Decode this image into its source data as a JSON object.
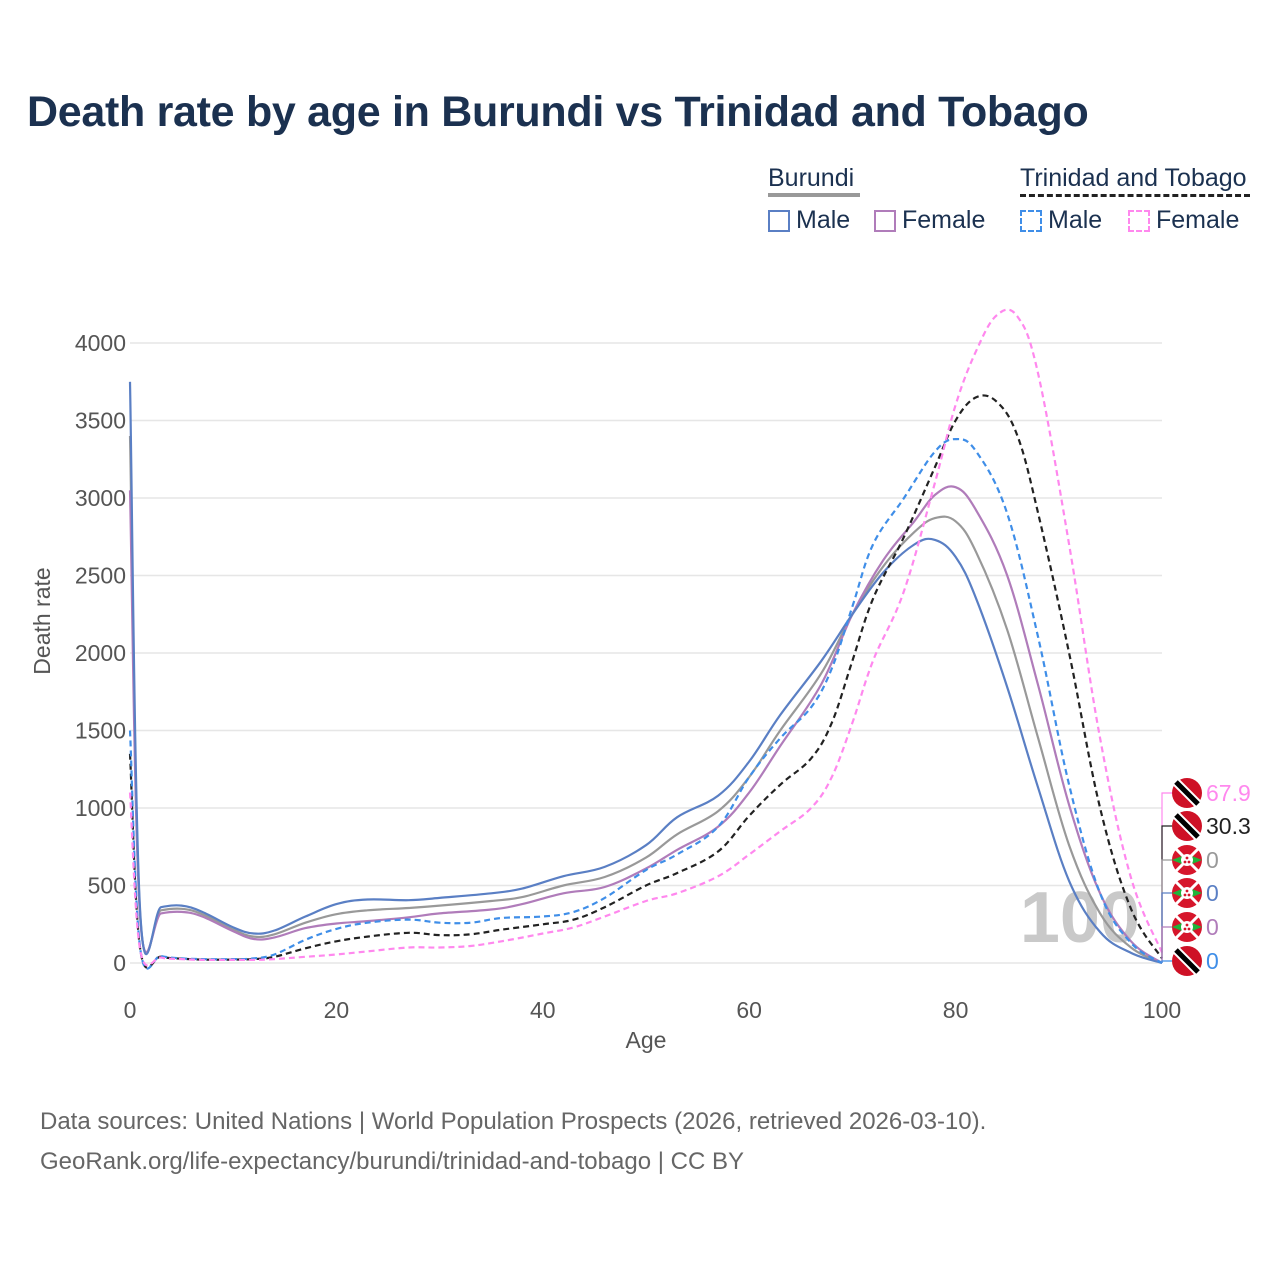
{
  "title": "Death rate by age in Burundi vs Trinidad and Tobago",
  "legend": {
    "groups": [
      {
        "name": "Burundi",
        "items": [
          "Male",
          "Female"
        ]
      },
      {
        "name": "Trinidad and Tobago",
        "items": [
          "Male",
          "Female"
        ]
      }
    ]
  },
  "watermark": "100",
  "footer": {
    "line1": "Data sources: United Nations | World Population Prospects (2026, retrieved 2026-03-10).",
    "line2": "GeoRank.org/life-expectancy/burundi/trinidad-and-tobago | CC BY"
  },
  "colors": {
    "burundi_male": "#5a7fc4",
    "burundi_female": "#b07cba",
    "burundi_total": "#999999",
    "tt_male": "#3f8ee8",
    "tt_female": "#ff88ee",
    "tt_total": "#222222",
    "title": "#1b3150"
  },
  "chart_data": {
    "type": "line",
    "title": "Death rate by age in Burundi vs Trinidad and Tobago",
    "xlabel": "Age",
    "ylabel": "Death rate",
    "xlim": [
      0,
      100
    ],
    "ylim": [
      0,
      4200
    ],
    "xticks": [
      0,
      20,
      40,
      60,
      80,
      100
    ],
    "yticks": [
      0,
      500,
      1000,
      1500,
      2000,
      2500,
      3000,
      3500,
      4000
    ],
    "grid": true,
    "series": [
      {
        "name": "Burundi Male",
        "country": "Burundi",
        "sex": "Male",
        "style": "solid",
        "color": "#5a7fc4",
        "x": [
          0,
          1,
          3,
          5,
          7,
          10,
          12,
          14,
          17,
          20,
          23,
          27,
          30,
          35,
          38,
          42,
          46,
          50,
          53,
          57,
          60,
          63,
          67,
          70,
          73,
          76,
          78,
          80,
          82,
          85,
          88,
          91,
          94,
          97,
          100
        ],
        "y": [
          3750,
          320,
          360,
          370,
          330,
          230,
          190,
          210,
          300,
          380,
          410,
          405,
          420,
          450,
          480,
          560,
          620,
          760,
          940,
          1080,
          1300,
          1600,
          1950,
          2250,
          2520,
          2700,
          2730,
          2620,
          2350,
          1780,
          1130,
          530,
          200,
          65,
          0
        ],
        "end_label": "0"
      },
      {
        "name": "Burundi Female",
        "country": "Burundi",
        "sex": "Female",
        "style": "solid",
        "color": "#b07cba",
        "x": [
          0,
          1,
          3,
          5,
          7,
          10,
          12,
          14,
          17,
          20,
          23,
          27,
          30,
          35,
          38,
          42,
          46,
          50,
          53,
          57,
          60,
          63,
          67,
          70,
          73,
          76,
          78,
          80,
          82,
          85,
          88,
          91,
          94,
          97,
          100
        ],
        "y": [
          3050,
          280,
          320,
          330,
          300,
          205,
          155,
          165,
          225,
          255,
          270,
          295,
          320,
          345,
          380,
          450,
          490,
          610,
          730,
          880,
          1100,
          1400,
          1800,
          2250,
          2600,
          2850,
          3020,
          3070,
          2920,
          2500,
          1790,
          1020,
          450,
          140,
          0
        ],
        "end_label": "0"
      },
      {
        "name": "Burundi Total",
        "country": "Burundi",
        "sex": "Total",
        "style": "solid",
        "color": "#999999",
        "x": [
          0,
          1,
          3,
          5,
          7,
          10,
          12,
          14,
          17,
          20,
          23,
          27,
          30,
          35,
          38,
          42,
          46,
          50,
          53,
          57,
          60,
          63,
          67,
          70,
          73,
          76,
          78,
          80,
          82,
          85,
          88,
          91,
          94,
          97,
          100
        ],
        "y": [
          3400,
          300,
          340,
          350,
          315,
          215,
          170,
          185,
          260,
          315,
          340,
          355,
          370,
          400,
          425,
          500,
          555,
          680,
          830,
          980,
          1200,
          1500,
          1870,
          2250,
          2560,
          2780,
          2870,
          2850,
          2650,
          2150,
          1450,
          760,
          320,
          100,
          0
        ],
        "end_label": "0"
      },
      {
        "name": "Trinidad and Tobago Male",
        "country": "Trinidad and Tobago",
        "sex": "Male",
        "style": "dashed",
        "color": "#3f8ee8",
        "x": [
          0,
          1,
          3,
          5,
          7,
          10,
          12,
          14,
          17,
          20,
          23,
          27,
          30,
          33,
          36,
          40,
          43,
          46,
          50,
          53,
          57,
          60,
          63,
          66,
          68,
          70,
          72,
          75,
          78,
          80,
          82,
          85,
          88,
          91,
          94,
          97,
          100
        ],
        "y": [
          1500,
          90,
          45,
          30,
          25,
          25,
          30,
          55,
          150,
          220,
          260,
          280,
          260,
          260,
          290,
          300,
          330,
          420,
          600,
          700,
          880,
          1200,
          1450,
          1650,
          1900,
          2300,
          2700,
          3000,
          3300,
          3380,
          3300,
          2900,
          2100,
          1150,
          450,
          130,
          0
        ],
        "end_label": "0"
      },
      {
        "name": "Trinidad and Tobago Female",
        "country": "Trinidad and Tobago",
        "sex": "Female",
        "style": "dashed",
        "color": "#ff88ee",
        "x": [
          0,
          1,
          3,
          5,
          7,
          10,
          12,
          14,
          17,
          20,
          23,
          27,
          30,
          33,
          36,
          40,
          43,
          46,
          50,
          53,
          57,
          60,
          63,
          66,
          68,
          70,
          72,
          75,
          78,
          80,
          82,
          84,
          86,
          88,
          91,
          94,
          97,
          100
        ],
        "y": [
          1100,
          80,
          35,
          25,
          20,
          20,
          20,
          25,
          40,
          55,
          75,
          100,
          100,
          110,
          140,
          190,
          230,
          300,
          400,
          450,
          560,
          700,
          850,
          1000,
          1200,
          1550,
          1950,
          2400,
          3100,
          3600,
          3950,
          4180,
          4170,
          3800,
          2700,
          1450,
          550,
          68
        ],
        "end_label": "67.9"
      },
      {
        "name": "Trinidad and Tobago Total",
        "country": "Trinidad and Tobago",
        "sex": "Total",
        "style": "dashed",
        "color": "#222222",
        "x": [
          0,
          1,
          3,
          5,
          7,
          10,
          12,
          14,
          17,
          20,
          23,
          27,
          30,
          33,
          36,
          40,
          43,
          46,
          50,
          53,
          57,
          60,
          63,
          66,
          68,
          70,
          72,
          75,
          78,
          80,
          82,
          84,
          86,
          88,
          91,
          94,
          97,
          100
        ],
        "y": [
          1350,
          85,
          40,
          28,
          22,
          22,
          25,
          40,
          95,
          140,
          170,
          195,
          180,
          185,
          215,
          250,
          280,
          360,
          500,
          580,
          720,
          950,
          1150,
          1320,
          1550,
          1950,
          2350,
          2750,
          3200,
          3500,
          3650,
          3620,
          3400,
          2900,
          2000,
          1000,
          350,
          30
        ],
        "end_label": "30.3"
      }
    ]
  }
}
